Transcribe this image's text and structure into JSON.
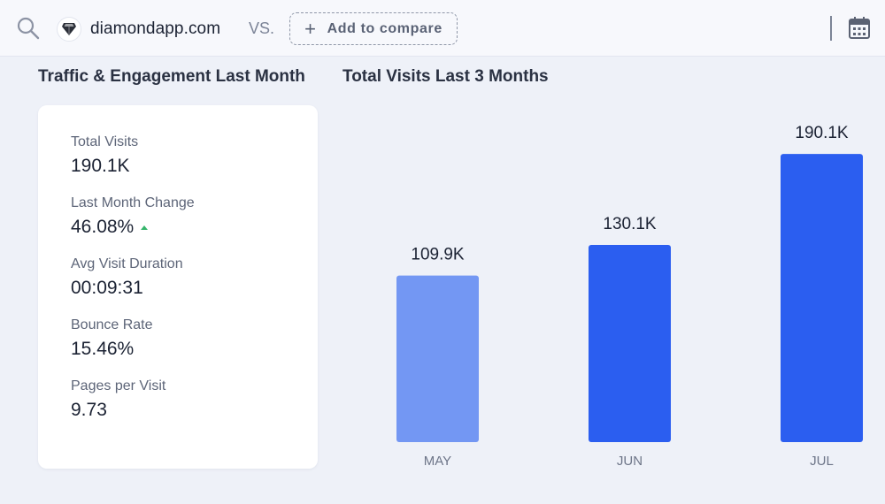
{
  "header": {
    "search_icon": "search-icon",
    "site": {
      "name": "diamondapp.com",
      "logo_icon": "diamond-icon"
    },
    "vs_label": "VS.",
    "add_compare_label": "Add to compare",
    "calendar_icon": "calendar-icon"
  },
  "engagement": {
    "title": "Traffic & Engagement Last Month",
    "stats": [
      {
        "label": "Total Visits",
        "value": "190.1K"
      },
      {
        "label": "Last Month Change",
        "value": "46.08%",
        "trend": "up"
      },
      {
        "label": "Avg Visit Duration",
        "value": "00:09:31"
      },
      {
        "label": "Bounce Rate",
        "value": "15.46%"
      },
      {
        "label": "Pages per Visit",
        "value": "9.73"
      }
    ]
  },
  "chart_title": "Total Visits Last 3 Months",
  "colors": {
    "bar_light": "#7397f3",
    "bar_dark": "#2b5ef0",
    "trend_up": "#35b56b"
  },
  "chart_data": {
    "type": "bar",
    "title": "Total Visits Last 3 Months",
    "categories": [
      "MAY",
      "JUN",
      "JUL"
    ],
    "values": [
      109.9,
      130.1,
      190.1
    ],
    "value_labels": [
      "109.9K",
      "130.1K",
      "190.1K"
    ],
    "unit": "K visits",
    "ylim": [
      0,
      210
    ],
    "grid": false,
    "legend": "none"
  }
}
